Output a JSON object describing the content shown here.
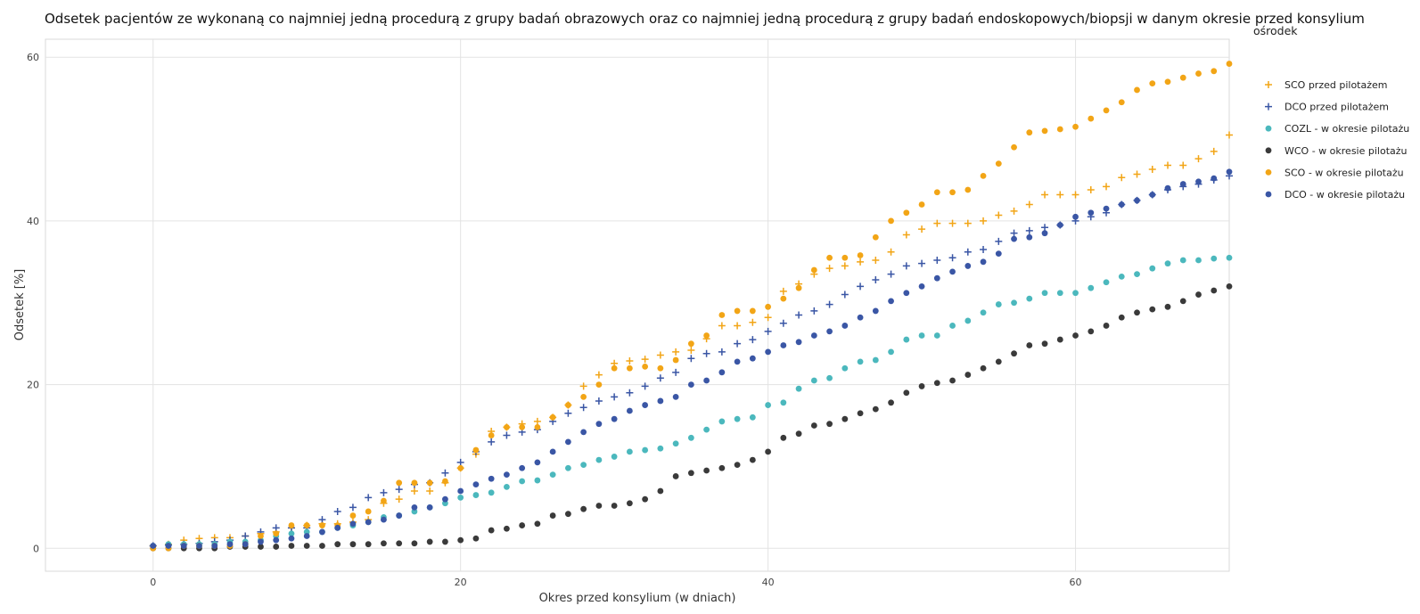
{
  "chart_data": {
    "type": "scatter",
    "title": "Odsetek pacjentów ze wykonaną co najmniej jedną procedurą z grupy badań obrazowych oraz co najmniej jedną procedurą z grupy badań endoskopowych/biopsji w danym okresie przed konsylium",
    "xlabel": "Okres przed konsylium (w dniach)",
    "ylabel": "Odsetek [%]",
    "xlim": [
      -7,
      70
    ],
    "ylim": [
      -2.8,
      62.2
    ],
    "xticks": [
      0,
      20,
      40,
      60
    ],
    "yticks": [
      0,
      20,
      40,
      60
    ],
    "grid": true,
    "legend_title": "ośrodek",
    "legend_position": "top-right",
    "x": [
      0,
      1,
      2,
      3,
      4,
      5,
      6,
      7,
      8,
      9,
      10,
      11,
      12,
      13,
      14,
      15,
      16,
      17,
      18,
      19,
      20,
      21,
      22,
      23,
      24,
      25,
      26,
      27,
      28,
      29,
      30,
      31,
      32,
      33,
      34,
      35,
      36,
      37,
      38,
      39,
      40,
      41,
      42,
      43,
      44,
      45,
      46,
      47,
      48,
      49,
      50,
      51,
      52,
      53,
      54,
      55,
      56,
      57,
      58,
      59,
      60,
      61,
      62,
      63,
      64,
      65,
      66,
      67,
      68,
      69,
      70
    ],
    "series": [
      {
        "name": "SCO przed pilotażem",
        "marker": "plus",
        "color": "#f2a516",
        "values": [
          0.3,
          0.5,
          1.0,
          1.2,
          1.3,
          1.3,
          1.5,
          1.8,
          2.0,
          2.5,
          2.8,
          3.0,
          3.0,
          3.2,
          3.5,
          5.5,
          6.0,
          7.0,
          7.0,
          8.0,
          9.8,
          11.5,
          14.3,
          14.8,
          15.2,
          15.5,
          16.0,
          17.5,
          19.8,
          21.2,
          22.6,
          22.9,
          23.1,
          23.6,
          24.0,
          24.2,
          25.6,
          27.2,
          27.2,
          27.6,
          28.2,
          31.4,
          32.3,
          33.5,
          34.2,
          34.5,
          35.0,
          35.2,
          36.2,
          38.3,
          39.0,
          39.7,
          39.7,
          39.7,
          40.0,
          40.7,
          41.2,
          42.0,
          43.2,
          43.2,
          43.2,
          43.8,
          44.2,
          45.3,
          45.7,
          46.3,
          46.8,
          46.8,
          47.6,
          48.5,
          50.5
        ]
      },
      {
        "name": "DCO przed pilotażem",
        "marker": "plus",
        "color": "#3a56a5",
        "values": [
          0.3,
          0.4,
          0.5,
          0.6,
          0.8,
          1.0,
          1.5,
          2.0,
          2.5,
          2.5,
          2.5,
          3.5,
          4.5,
          5.0,
          6.2,
          6.8,
          7.2,
          7.8,
          8.0,
          9.2,
          10.5,
          11.8,
          13.0,
          13.8,
          14.2,
          14.5,
          15.5,
          16.5,
          17.2,
          18.0,
          18.5,
          19.0,
          19.8,
          20.8,
          21.5,
          23.2,
          23.8,
          24.0,
          25.0,
          25.5,
          26.5,
          27.5,
          28.5,
          29.0,
          29.8,
          31.0,
          32.0,
          32.8,
          33.5,
          34.5,
          34.8,
          35.2,
          35.5,
          36.2,
          36.5,
          37.5,
          38.5,
          38.8,
          39.2,
          39.5,
          40.0,
          40.5,
          41.0,
          42.0,
          42.5,
          43.2,
          43.8,
          44.2,
          44.5,
          45.0,
          45.5
        ]
      },
      {
        "name": "COZL - w okresie pilotażu",
        "marker": "circle",
        "color": "#4bb8bd",
        "values": [
          0.3,
          0.5,
          0.5,
          0.5,
          0.5,
          0.8,
          0.8,
          1.0,
          1.5,
          1.8,
          2.0,
          2.0,
          2.5,
          2.8,
          3.2,
          3.8,
          4.0,
          4.5,
          5.0,
          5.5,
          6.2,
          6.5,
          6.8,
          7.5,
          8.2,
          8.3,
          9.0,
          9.8,
          10.2,
          10.8,
          11.2,
          11.8,
          12.0,
          12.2,
          12.8,
          13.5,
          14.5,
          15.5,
          15.8,
          16.0,
          17.5,
          17.8,
          19.5,
          20.5,
          20.8,
          22.0,
          22.8,
          23.0,
          24.0,
          25.5,
          26.0,
          26.0,
          27.2,
          27.8,
          28.8,
          29.8,
          30.0,
          30.5,
          31.2,
          31.2,
          31.2,
          31.8,
          32.5,
          33.2,
          33.5,
          34.2,
          34.8,
          35.2,
          35.2,
          35.4,
          35.5
        ]
      },
      {
        "name": "WCO - w okresie pilotażu",
        "marker": "circle",
        "color": "#3a3a3a",
        "values": [
          0.0,
          0.0,
          0.0,
          0.0,
          0.0,
          0.2,
          0.2,
          0.2,
          0.2,
          0.3,
          0.3,
          0.3,
          0.5,
          0.5,
          0.5,
          0.6,
          0.6,
          0.6,
          0.8,
          0.8,
          1.0,
          1.2,
          2.2,
          2.4,
          2.8,
          3.0,
          4.0,
          4.2,
          4.8,
          5.2,
          5.2,
          5.5,
          6.0,
          7.0,
          8.8,
          9.2,
          9.5,
          9.8,
          10.2,
          10.8,
          11.8,
          13.5,
          14.0,
          15.0,
          15.2,
          15.8,
          16.5,
          17.0,
          17.8,
          19.0,
          19.8,
          20.2,
          20.5,
          21.2,
          22.0,
          22.8,
          23.8,
          24.8,
          25.0,
          25.5,
          26.0,
          26.5,
          27.2,
          28.2,
          28.8,
          29.2,
          29.5,
          30.2,
          31.0,
          31.5,
          32.0
        ]
      },
      {
        "name": "SCO - w okresie pilotażu",
        "marker": "circle",
        "color": "#f2a516",
        "values": [
          0.0,
          0.0,
          0.3,
          0.3,
          0.3,
          0.3,
          0.5,
          1.5,
          1.8,
          2.8,
          2.8,
          2.8,
          2.8,
          4.0,
          4.5,
          5.8,
          8.0,
          8.0,
          8.0,
          8.2,
          9.8,
          12.0,
          13.8,
          14.8,
          14.8,
          14.8,
          16.0,
          17.5,
          18.5,
          20.0,
          22.0,
          22.0,
          22.2,
          22.0,
          23.0,
          25.0,
          26.0,
          28.5,
          29.0,
          29.0,
          29.5,
          30.5,
          31.8,
          34.0,
          35.5,
          35.5,
          35.8,
          38.0,
          40.0,
          41.0,
          42.0,
          43.5,
          43.5,
          43.8,
          45.5,
          47.0,
          49.0,
          50.8,
          51.0,
          51.2,
          51.5,
          52.5,
          53.5,
          54.5,
          56.0,
          56.8,
          57.0,
          57.5,
          58.0,
          58.3,
          59.2
        ]
      },
      {
        "name": "DCO - w okresie pilotażu",
        "marker": "circle",
        "color": "#3a56a5",
        "values": [
          0.3,
          0.3,
          0.3,
          0.3,
          0.3,
          0.5,
          0.5,
          0.8,
          1.0,
          1.2,
          1.5,
          2.0,
          2.5,
          3.0,
          3.2,
          3.5,
          4.0,
          5.0,
          5.0,
          6.0,
          7.0,
          7.8,
          8.5,
          9.0,
          9.8,
          10.5,
          11.8,
          13.0,
          14.2,
          15.2,
          15.8,
          16.8,
          17.5,
          18.0,
          18.5,
          20.0,
          20.5,
          21.5,
          22.8,
          23.2,
          24.0,
          24.8,
          25.2,
          26.0,
          26.5,
          27.2,
          28.2,
          29.0,
          30.2,
          31.2,
          32.0,
          33.0,
          33.8,
          34.5,
          35.0,
          36.0,
          37.8,
          38.0,
          38.5,
          39.5,
          40.5,
          41.0,
          41.5,
          42.0,
          42.5,
          43.2,
          44.0,
          44.5,
          44.8,
          45.2,
          46.0
        ]
      }
    ]
  }
}
